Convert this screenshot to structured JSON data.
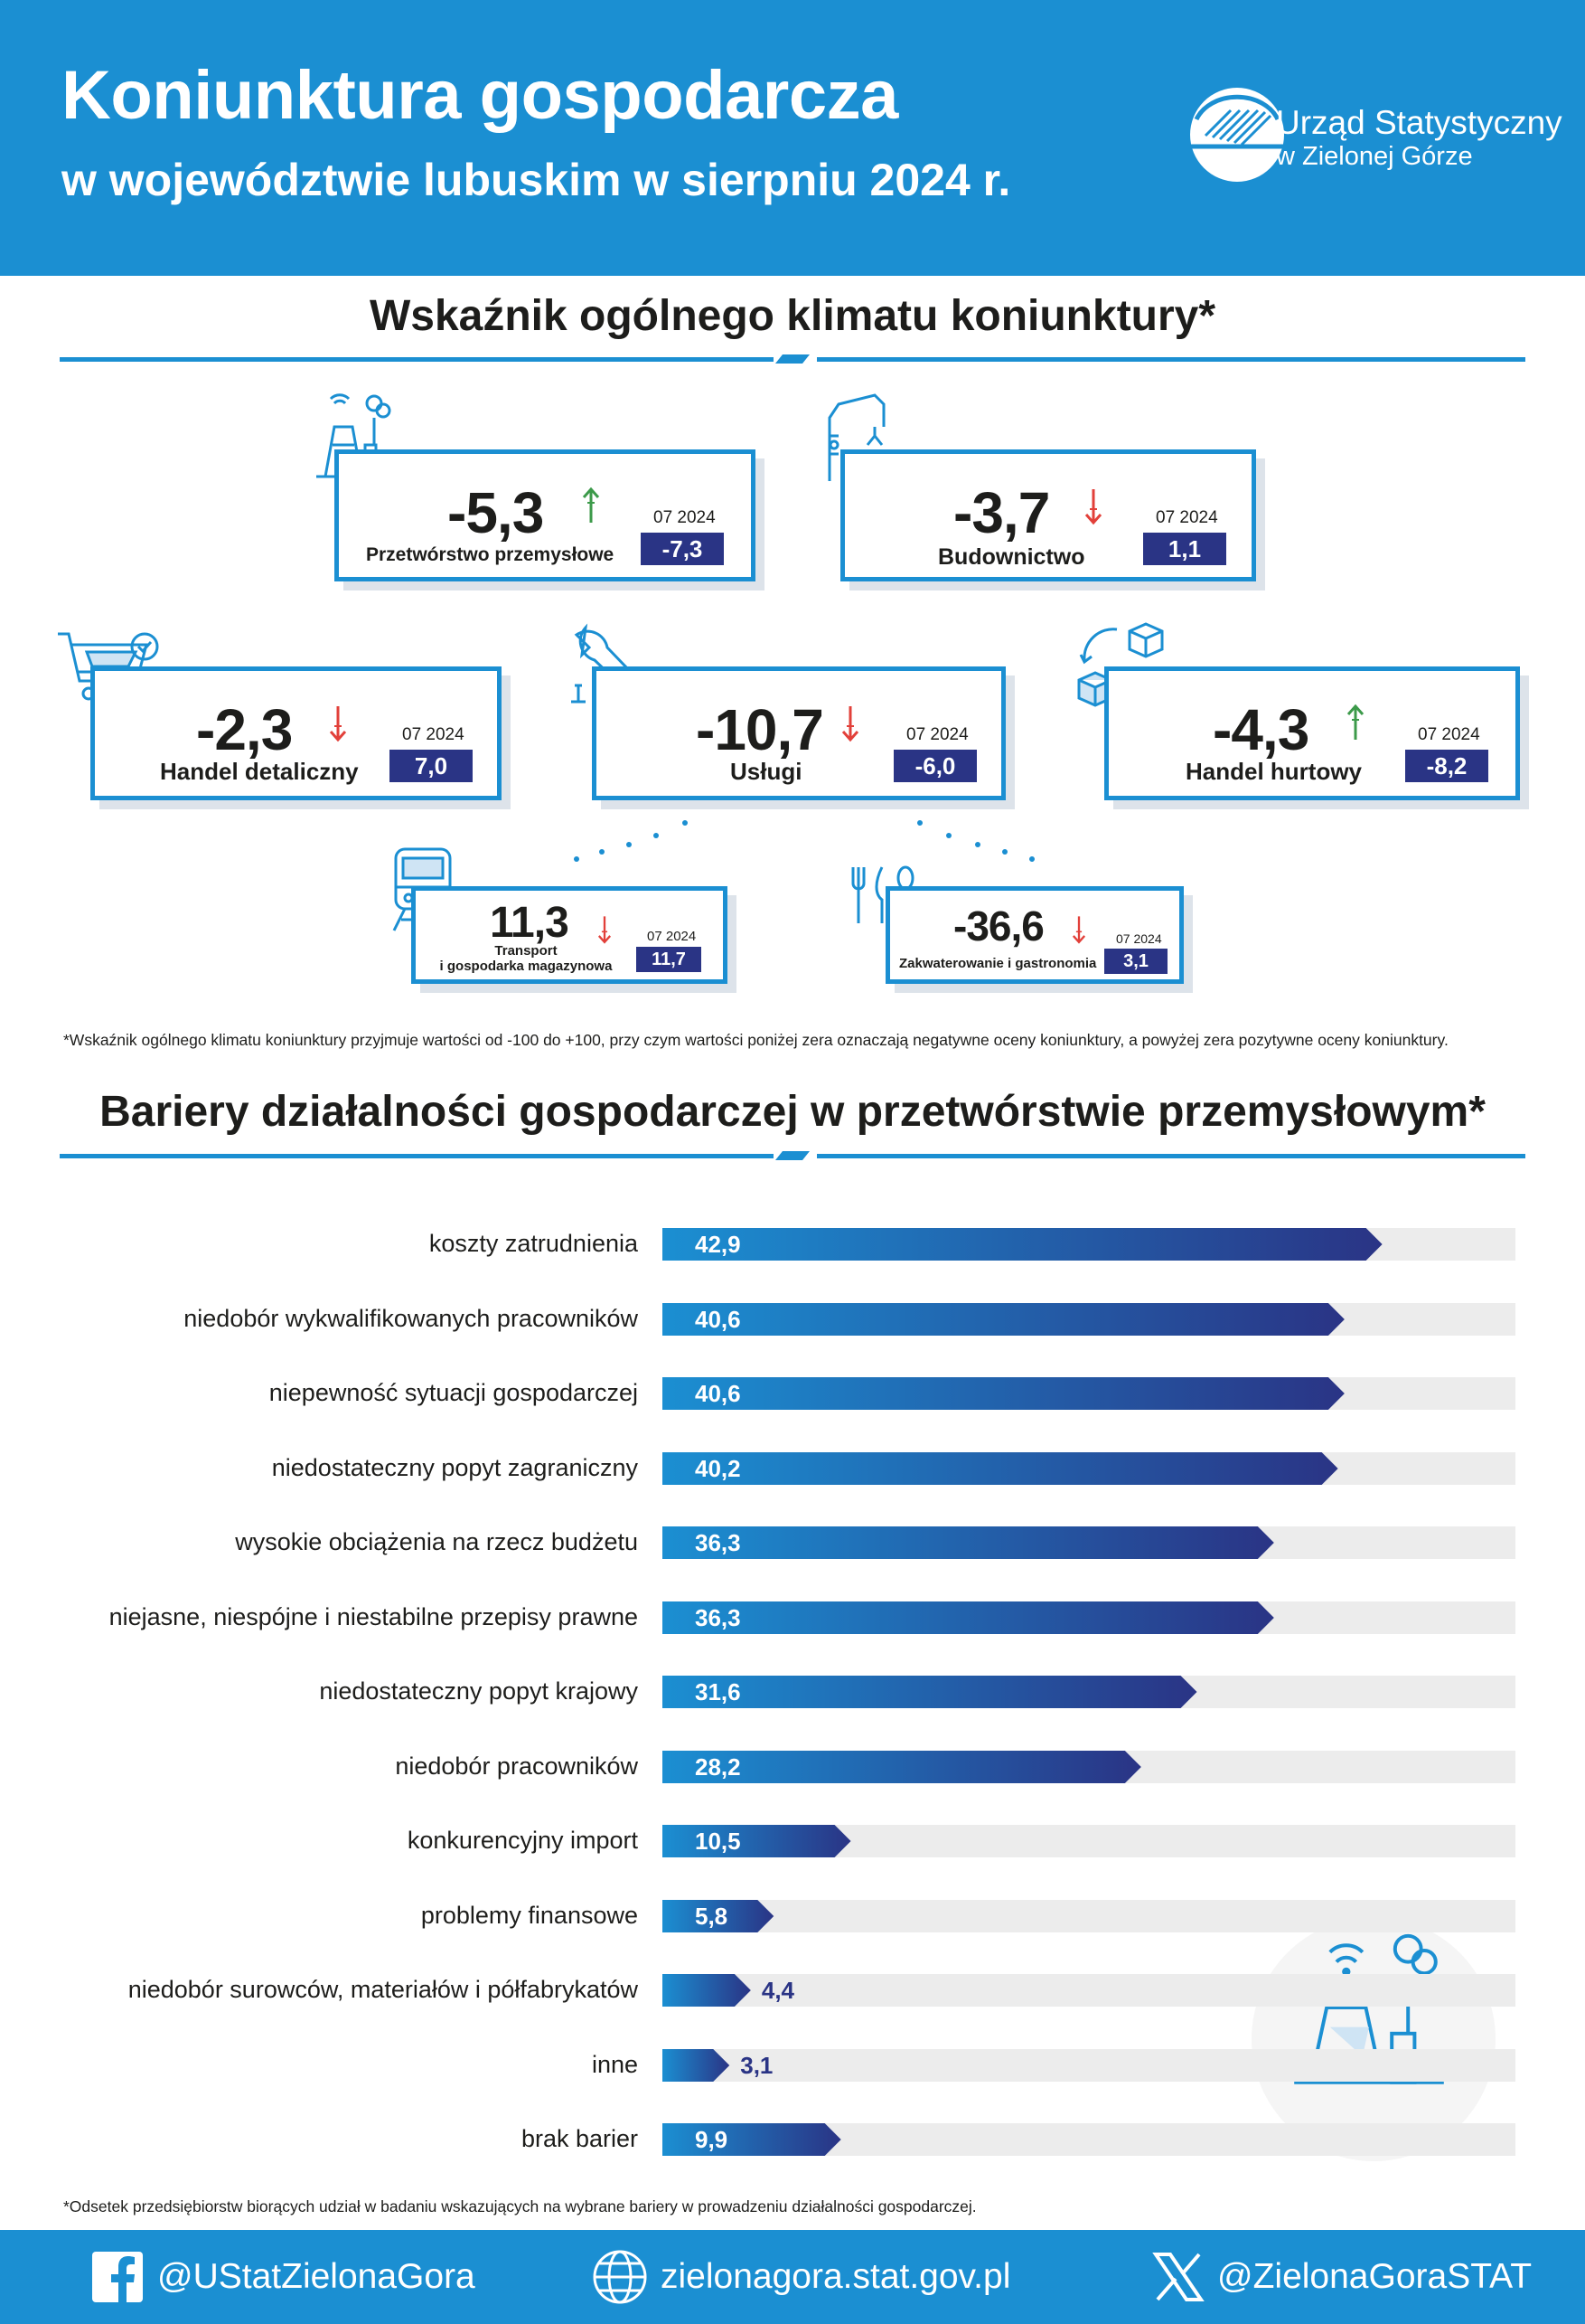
{
  "header": {
    "title": "Koniunktura gospodarcza",
    "subtitle": "w województwie lubuskim w sierpniu 2024 r.",
    "logo_line1": "Urząd Statystyczny",
    "logo_line2": "w Zielonej Górze"
  },
  "climate": {
    "title": "Wskaźnik ogólnego klimatu koniunktury*",
    "prev_period": "07 2024",
    "sectors": [
      {
        "name": "Przetwórstwo przemysłowe",
        "value": "-5,3",
        "prev": "-7,3",
        "trend": "up",
        "icon": "factory-icon"
      },
      {
        "name": "Budownictwo",
        "value": "-3,7",
        "prev": "1,1",
        "trend": "down",
        "icon": "crane-icon"
      },
      {
        "name": "Handel detaliczny",
        "value": "-2,3",
        "prev": "7,0",
        "trend": "down",
        "icon": "cart-icon"
      },
      {
        "name": "Usługi",
        "value": "-10,7",
        "prev": "-6,0",
        "trend": "down",
        "icon": "wrench-icon"
      },
      {
        "name": "Handel hurtowy",
        "value": "-4,3",
        "prev": "-8,2",
        "trend": "up",
        "icon": "boxes-icon"
      },
      {
        "name_line1": "Transport",
        "name_line2": "i gospodarka magazynowa",
        "value": "11,3",
        "prev": "11,7",
        "trend": "down",
        "icon": "train-icon"
      },
      {
        "name": "Zakwaterowanie i gastronomia",
        "value": "-36,6",
        "prev": "3,1",
        "trend": "down",
        "icon": "cutlery-icon"
      }
    ],
    "note": "*Wskaźnik ogólnego klimatu koniunktury przyjmuje wartości od -100 do +100, przy czym wartości poniżej zera oznaczają negatywne oceny koniunktury, a powyżej zera pozytywne oceny koniunktury."
  },
  "chart_data": {
    "type": "bar",
    "title": "Bariery działalności gospodarczej w przetwórstwie przemysłowym*",
    "categories": [
      "koszty zatrudnienia",
      "niedobór wykwalifikowanych pracowników",
      "niepewność sytuacji  gospodarczej",
      "niedostateczny popyt zagraniczny",
      "wysokie obciążenia na rzecz budżetu",
      "niejasne, niespójne i niestabilne przepisy prawne",
      "niedostateczny popyt krajowy",
      "niedobór pracowników",
      "konkurencyjny import",
      "problemy finansowe",
      "niedobór surowców, materiałów i półfabrykatów",
      "inne",
      "brak barier"
    ],
    "values": [
      42.9,
      40.6,
      40.6,
      40.2,
      36.3,
      36.3,
      31.6,
      28.2,
      10.5,
      5.8,
      4.4,
      3.1,
      9.9
    ],
    "value_labels": [
      "42,9",
      "40,6",
      "40,6",
      "40,2",
      "36,3",
      "36,3",
      "31,6",
      "28,2",
      "10,5",
      "5,8",
      "4,4",
      "3,1",
      "9,9"
    ],
    "xlim": [
      0,
      50
    ],
    "orientation": "horizontal",
    "note": "*Odsetek przedsiębiorstw biorących udział w badaniu wskazujących na wybrane bariery w prowadzeniu działalności gospodarczej."
  },
  "colors": {
    "brand_blue": "#1b8fd2",
    "navy": "#2a3485",
    "up_arrow": "#3c9a4a",
    "down_arrow": "#e2403a"
  },
  "footer": {
    "facebook": "@UStatZielonaGora",
    "website": "zielonagora.stat.gov.pl",
    "x": "@ZielonaGoraSTAT"
  }
}
